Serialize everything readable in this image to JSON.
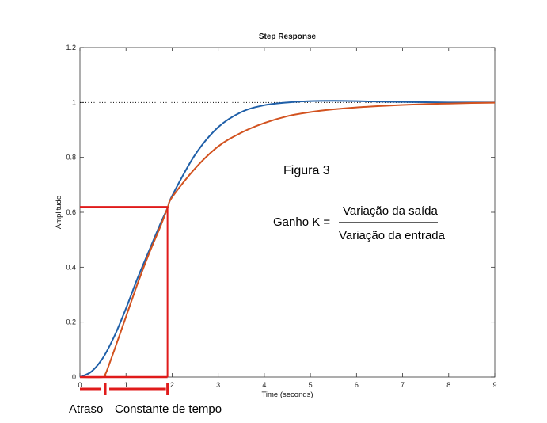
{
  "chart_data": {
    "type": "line",
    "title": "Step Response",
    "xlabel": "Time (seconds)",
    "ylabel": "Amplitude",
    "xlim": [
      0,
      9
    ],
    "ylim": [
      0,
      1.2
    ],
    "x_ticks": [
      0,
      1,
      2,
      3,
      4,
      5,
      6,
      7,
      8,
      9
    ],
    "y_ticks": [
      0,
      0.2,
      0.4,
      0.6,
      0.8,
      1,
      1.2
    ],
    "grid": false,
    "reference_line": {
      "y": 1,
      "style": "dotted"
    },
    "series": [
      {
        "color": "#1f5fa8",
        "x": [
          0,
          0.25,
          0.5,
          0.75,
          1,
          1.25,
          1.5,
          1.75,
          1.9,
          2,
          2.5,
          3,
          3.5,
          4,
          4.5,
          5,
          5.5,
          6,
          6.5,
          7,
          7.5,
          8,
          8.5,
          9
        ],
        "y": [
          0,
          0.02,
          0.07,
          0.15,
          0.25,
          0.36,
          0.46,
          0.56,
          0.615,
          0.66,
          0.81,
          0.91,
          0.965,
          0.99,
          1.0,
          1.005,
          1.006,
          1.005,
          1.003,
          1.002,
          1.001,
          1.0,
          1.0,
          1.0
        ]
      },
      {
        "color": "#d2521f",
        "x": [
          0,
          0.5,
          0.55,
          0.6,
          0.75,
          1,
          1.25,
          1.5,
          1.75,
          1.9,
          2,
          2.5,
          3,
          3.5,
          4,
          4.5,
          5,
          5.5,
          6,
          6.5,
          7,
          7.5,
          8,
          8.5,
          9
        ],
        "y": [
          0,
          0,
          0.01,
          0.03,
          0.1,
          0.22,
          0.34,
          0.45,
          0.55,
          0.615,
          0.655,
          0.76,
          0.84,
          0.89,
          0.925,
          0.95,
          0.965,
          0.975,
          0.982,
          0.987,
          0.991,
          0.994,
          0.996,
          0.998,
          0.999
        ]
      }
    ],
    "annotations": {
      "figure_label": "Figura 3",
      "gain_lhs": "Ganho K =",
      "gain_numerator": "Variação da saída",
      "gain_denominator": "Variação da entrada",
      "delay_label": "Atraso",
      "time_constant_label": "Constante de tempo",
      "marker": {
        "x": 1.9,
        "y": 0.62,
        "delay_end": 0.55
      },
      "marker_color": "#e01b1b"
    }
  }
}
